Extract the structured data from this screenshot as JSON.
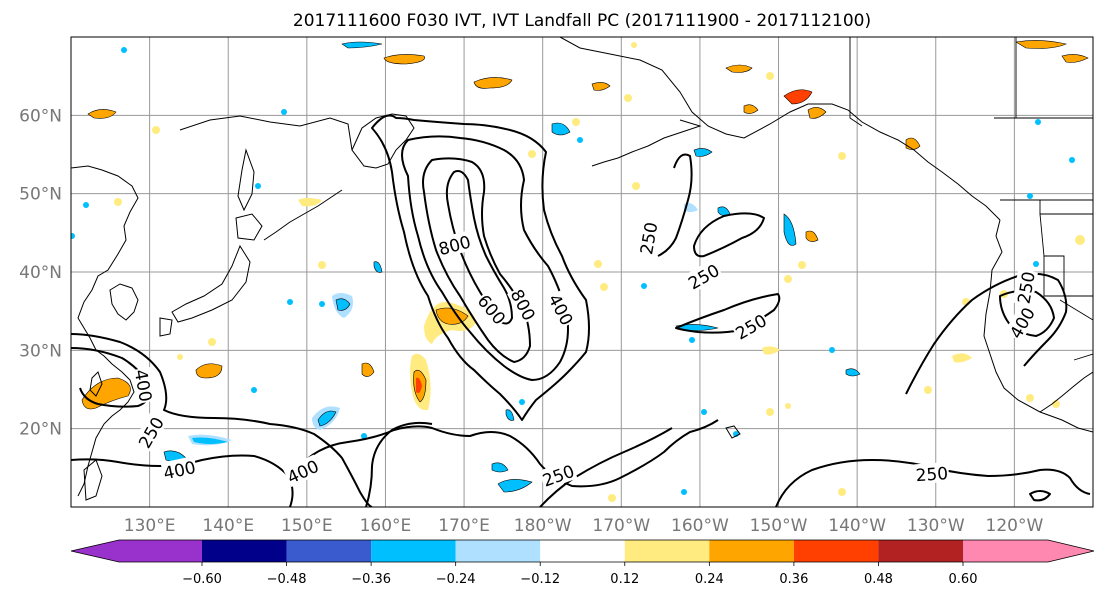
{
  "title": "2017111600 F030 IVT, IVT Landfall PC (2017111900 - 2017112100)",
  "map": {
    "lon_range": [
      120,
      250
    ],
    "lat_range": [
      10,
      70
    ],
    "lat_ticks": [
      {
        "lat": 20,
        "label": "20°N"
      },
      {
        "lat": 30,
        "label": "30°N"
      },
      {
        "lat": 40,
        "label": "40°N"
      },
      {
        "lat": 50,
        "label": "50°N"
      },
      {
        "lat": 60,
        "label": "60°N"
      }
    ],
    "lon_ticks": [
      {
        "lon": 130,
        "label": "130°E"
      },
      {
        "lon": 140,
        "label": "140°E"
      },
      {
        "lon": 150,
        "label": "150°E"
      },
      {
        "lon": 160,
        "label": "160°E"
      },
      {
        "lon": 170,
        "label": "170°E"
      },
      {
        "lon": 180,
        "label": "180°W"
      },
      {
        "lon": 190,
        "label": "170°W"
      },
      {
        "lon": 200,
        "label": "160°W"
      },
      {
        "lon": 210,
        "label": "150°W"
      },
      {
        "lon": 220,
        "label": "140°W"
      },
      {
        "lon": 230,
        "label": "130°W"
      },
      {
        "lon": 240,
        "label": "120°W"
      }
    ],
    "gridlines": true
  },
  "contour_labels": [
    {
      "text": "800",
      "lon": 168.8,
      "lat": 43.4,
      "angle": -15
    },
    {
      "text": "600",
      "lon": 173.5,
      "lat": 35.2,
      "angle": 50
    },
    {
      "text": "800",
      "lon": 177.5,
      "lat": 35.8,
      "angle": 62
    },
    {
      "text": "400",
      "lon": 182.3,
      "lat": 35.2,
      "angle": 62
    },
    {
      "text": "250",
      "lon": 193.5,
      "lat": 44.3,
      "angle": -80
    },
    {
      "text": "250",
      "lon": 200.5,
      "lat": 39.4,
      "angle": -30
    },
    {
      "text": "250",
      "lon": 206.5,
      "lat": 33.0,
      "angle": -30
    },
    {
      "text": "400",
      "lon": 129.2,
      "lat": 25.5,
      "angle": 80
    },
    {
      "text": "250",
      "lon": 130.2,
      "lat": 19.5,
      "angle": -60
    },
    {
      "text": "400",
      "lon": 133.8,
      "lat": 14.7,
      "angle": -12
    },
    {
      "text": "400",
      "lon": 149.5,
      "lat": 14.5,
      "angle": -25
    },
    {
      "text": "250",
      "lon": 182.0,
      "lat": 14.0,
      "angle": -20
    },
    {
      "text": "250",
      "lon": 229.5,
      "lat": 14.2,
      "angle": -4
    },
    {
      "text": "250",
      "lon": 241.5,
      "lat": 38.0,
      "angle": -80
    },
    {
      "text": "400",
      "lon": 241.0,
      "lat": 33.5,
      "angle": -60
    }
  ],
  "colorbar": {
    "colors": [
      "#9932CC",
      "#00008B",
      "#3A5BCD",
      "#00BFFF",
      "#B0E0FF",
      "#FFFFFF",
      "#FFEB80",
      "#FFA500",
      "#FF4000",
      "#B22222",
      "#FF88B0"
    ],
    "ticks": [
      "−0.60",
      "−0.48",
      "−0.36",
      "−0.24",
      "−0.12",
      "0.12",
      "0.24",
      "0.36",
      "0.48",
      "0.60"
    ]
  },
  "colors": {
    "land_outline": "#000000",
    "grid": "#999999",
    "tick_label": "#777777"
  }
}
